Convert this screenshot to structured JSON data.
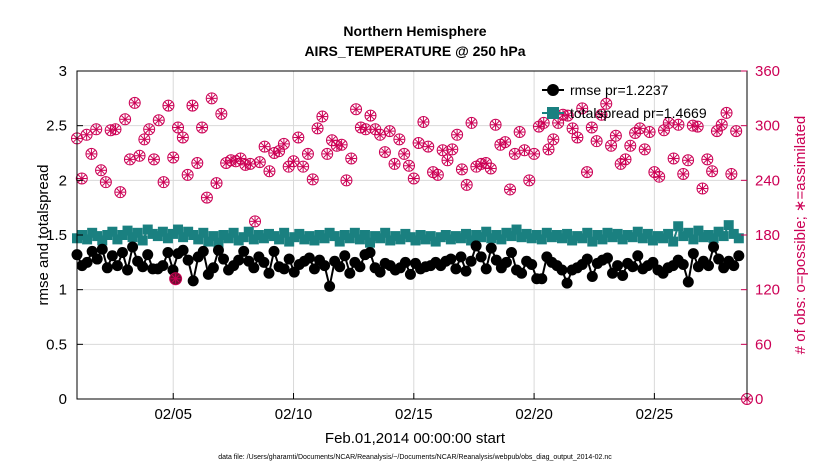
{
  "chart_data": {
    "type": "line",
    "title": "Northern Hemisphere",
    "subtitle": "AIRS_TEMPERATURE @ 250 hPa",
    "xlabel": "Feb.01,2014 00:00:00 start",
    "ylabel": "rmse and totalspread",
    "ylabel_right": "# of obs: o=possible; ∗=assimilated",
    "footnote": "data file: /Users/gharamti/Documents/NCAR/Reanalysis/~/Documents/NCAR/Reanalysis/webpub/obs_diag_output_2014-02.nc",
    "x_unit": "days since Feb.01 00:00",
    "xlim": [
      1.0,
      28.85
    ],
    "ylim": [
      0,
      3
    ],
    "ylim_right": [
      0,
      360
    ],
    "xticks": [
      5,
      10,
      15,
      20,
      25
    ],
    "xtick_labels": [
      "02/05",
      "02/10",
      "02/15",
      "02/20",
      "02/25"
    ],
    "yticks": [
      0,
      0.5,
      1,
      1.5,
      2,
      2.5,
      3
    ],
    "ytick_labels": [
      "0",
      "0.5",
      "1",
      "1.5",
      "2",
      "2.5",
      "3"
    ],
    "yticks_right": [
      0,
      60,
      120,
      180,
      240,
      300,
      360
    ],
    "ytick_labels_right": [
      "0",
      "60",
      "120",
      "180",
      "240",
      "300",
      "360"
    ],
    "grid": true,
    "legend_position": "top-right",
    "colors": {
      "rmse": "#000000",
      "totalspread": "#1a8080",
      "obs": "#cc0055",
      "axes": "#000000",
      "grid": "#d9d9d9"
    },
    "series": [
      {
        "name": "rmse",
        "legend_label": "rmse pr=1.2237",
        "axis": "left",
        "marker": "circle",
        "values": [
          1.32,
          1.22,
          1.25,
          1.35,
          1.28,
          1.37,
          1.2,
          1.31,
          1.22,
          1.34,
          1.18,
          1.39,
          1.26,
          1.21,
          1.32,
          1.19,
          1.19,
          1.22,
          1.34,
          1.18,
          1.33,
          1.36,
          1.27,
          1.08,
          1.3,
          1.35,
          1.14,
          1.2,
          1.36,
          1.28,
          1.18,
          1.22,
          1.27,
          1.35,
          1.26,
          1.2,
          1.3,
          1.25,
          1.15,
          1.35,
          1.21,
          1.19,
          1.28,
          1.16,
          1.23,
          1.26,
          1.29,
          1.19,
          1.27,
          1.22,
          1.03,
          1.26,
          1.21,
          1.31,
          1.15,
          1.25,
          1.21,
          1.32,
          1.34,
          1.2,
          1.16,
          1.24,
          1.22,
          1.18,
          1.2,
          1.25,
          1.14,
          1.24,
          1.19,
          1.21,
          1.22,
          1.25,
          1.22,
          1.26,
          1.28,
          1.19,
          1.3,
          1.17,
          1.26,
          1.4,
          1.3,
          1.19,
          1.38,
          1.27,
          1.2,
          1.25,
          1.34,
          1.18,
          1.15,
          1.26,
          1.23,
          1.1,
          1.1,
          1.3,
          1.25,
          1.22,
          1.18,
          1.06,
          1.18,
          1.2,
          1.23,
          1.28,
          1.12,
          1.24,
          1.27,
          1.29,
          1.15,
          1.22,
          1.13,
          1.24,
          1.21,
          1.31,
          1.19,
          1.22,
          1.25,
          1.18,
          1.15,
          1.2,
          1.22,
          1.27,
          1.23,
          1.07,
          1.33,
          1.21,
          1.26,
          1.22,
          1.39,
          1.28,
          1.2,
          1.26,
          1.22,
          1.31
        ],
        "x_start": 1.0,
        "x_step": 0.21
      },
      {
        "name": "totalspread",
        "legend_label": "totalspread pr=1.4669",
        "axis": "left",
        "marker": "square",
        "values": [
          1.47,
          1.5,
          1.46,
          1.52,
          1.49,
          1.45,
          1.5,
          1.53,
          1.46,
          1.5,
          1.54,
          1.48,
          1.52,
          1.45,
          1.55,
          1.51,
          1.49,
          1.53,
          1.47,
          1.51,
          1.55,
          1.48,
          1.53,
          1.5,
          1.46,
          1.52,
          1.44,
          1.49,
          1.43,
          1.5,
          1.47,
          1.52,
          1.45,
          1.48,
          1.53,
          1.46,
          1.5,
          1.47,
          1.51,
          1.49,
          1.46,
          1.52,
          1.44,
          1.48,
          1.51,
          1.46,
          1.49,
          1.45,
          1.5,
          1.47,
          1.52,
          1.49,
          1.44,
          1.5,
          1.47,
          1.52,
          1.46,
          1.5,
          1.43,
          1.49,
          1.47,
          1.52,
          1.45,
          1.49,
          1.46,
          1.51,
          1.48,
          1.45,
          1.5,
          1.46,
          1.49,
          1.44,
          1.48,
          1.5,
          1.46,
          1.49,
          1.47,
          1.51,
          1.45,
          1.5,
          1.48,
          1.53,
          1.47,
          1.5,
          1.46,
          1.52,
          1.49,
          1.55,
          1.48,
          1.51,
          1.47,
          1.5,
          1.46,
          1.52,
          1.48,
          1.5,
          1.47,
          1.51,
          1.45,
          1.49,
          1.47,
          1.52,
          1.44,
          1.5,
          1.46,
          1.52,
          1.48,
          1.51,
          1.46,
          1.5,
          1.48,
          1.53,
          1.47,
          1.51,
          1.45,
          1.49,
          1.47,
          1.51,
          1.44,
          1.58,
          1.49,
          1.52,
          1.46,
          1.54,
          1.48,
          1.5,
          1.47,
          1.53,
          1.49,
          1.59,
          1.51,
          1.47
        ],
        "x_start": 1.0,
        "x_step": 0.21
      },
      {
        "name": "# of obs",
        "legend_label": "",
        "axis": "right",
        "marker": "circle-asterisk",
        "values": [
          286,
          242,
          290,
          269,
          296,
          251,
          238,
          295,
          296,
          227,
          307,
          263,
          325,
          267,
          285,
          296,
          263,
          306,
          238,
          322,
          265,
          298,
          287,
          246,
          322,
          259,
          298,
          221,
          330,
          237,
          313,
          259,
          262,
          261,
          264,
          257,
          258,
          195,
          260,
          277,
          250,
          270,
          272,
          280,
          255,
          261,
          287,
          255,
          269,
          241,
          297,
          310,
          269,
          284,
          278,
          279,
          240,
          264,
          318,
          298,
          296,
          311,
          296,
          290,
          271,
          294,
          258,
          285,
          269,
          256,
          242,
          281,
          304,
          277,
          249,
          246,
          273,
          262,
          274,
          290,
          252,
          235,
          303,
          255,
          258,
          259,
          253,
          301,
          279,
          282,
          230,
          269,
          293,
          273,
          240,
          269,
          299,
          303,
          274,
          285,
          303,
          312,
          311,
          297,
          287,
          319,
          249,
          298,
          283,
          312,
          324,
          278,
          289,
          258,
          263,
          278,
          292,
          297,
          274,
          293,
          249,
          244,
          295,
          303,
          264,
          301,
          247,
          262,
          300,
          299,
          231,
          263,
          250,
          294,
          301,
          314,
          247,
          294
        ],
        "x_start": 1.0,
        "x_step": 0.2
      }
    ],
    "special_points": [
      {
        "x": 5.1,
        "value": 1.1,
        "note": "overlapping rmse/obs marker"
      }
    ],
    "right_axis_zero_marker": {
      "x": 28.85,
      "value": 0
    }
  }
}
